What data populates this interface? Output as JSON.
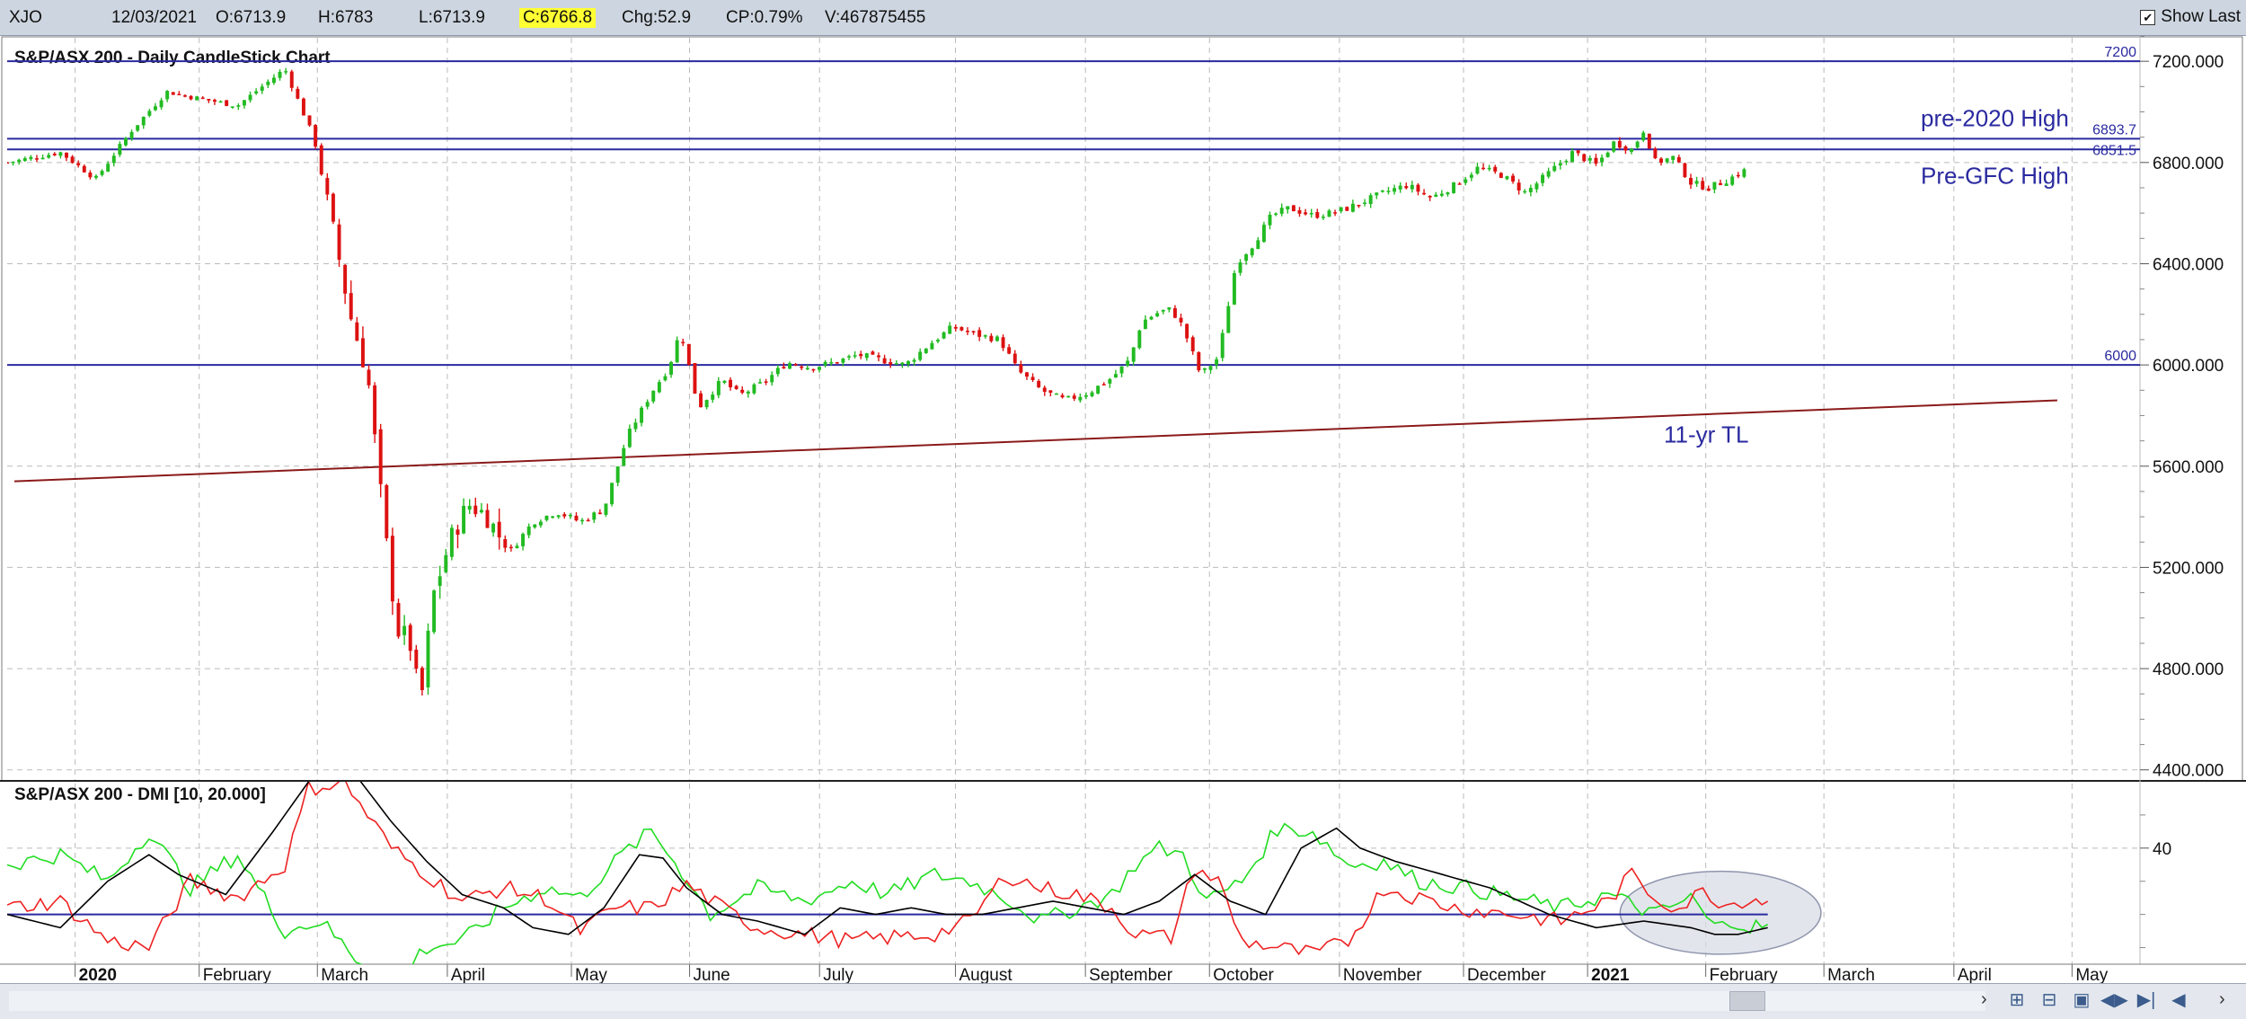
{
  "header": {
    "symbol": "XJO",
    "date": "12/03/2021",
    "open": "O:6713.9",
    "high": "H:6783",
    "low": "L:6713.9",
    "close": "C:6766.8",
    "change": "Chg:52.9",
    "change_pct": "CP:0.79%",
    "volume": "V:467875455",
    "show_last_label": "Show Last",
    "show_last_checked": true
  },
  "colors": {
    "up": "#22bb22",
    "down": "#dd1111",
    "hline": "#2a2aa0",
    "trendline": "#8b1a1a",
    "plus_di": "#22dd22",
    "minus_di": "#ee2222",
    "adx": "#000000",
    "annotation_text": "#2a2aa0",
    "highlight": "#ffff33"
  },
  "chart_data": [
    {
      "type": "candlestick",
      "title": "S&P/ASX 200 - Daily CandleStick Chart",
      "ylim": [
        4360,
        7300
      ],
      "y_ticks": [
        "7200.000",
        "6800.000",
        "6400.000",
        "6000.000",
        "5600.000",
        "5200.000",
        "4800.000",
        "4400.000"
      ],
      "y_tick_values": [
        7200,
        6800,
        6400,
        6000,
        5600,
        5200,
        4800,
        4400
      ],
      "x_month_labels": [
        "2020",
        "February",
        "March",
        "April",
        "May",
        "June",
        "July",
        "August",
        "September",
        "October",
        "November",
        "December",
        "2021",
        "February",
        "March",
        "April",
        "May"
      ],
      "x_month_starts": [
        2.5,
        23.5,
        43.5,
        65.5,
        86.5,
        106.5,
        128.5,
        151.5,
        173.5,
        194.5,
        216.5,
        237.5,
        258.5,
        278.5,
        298.5,
        320.5,
        340.5
      ],
      "x_range": [
        -9,
        352
      ],
      "series_close_path": [
        [
          -9,
          6800
        ],
        [
          0,
          6840
        ],
        [
          6,
          6735
        ],
        [
          12,
          6925
        ],
        [
          18,
          7080
        ],
        [
          24,
          7050
        ],
        [
          30,
          7025
        ],
        [
          38,
          7170
        ],
        [
          43,
          6890
        ],
        [
          47,
          6440
        ],
        [
          49,
          6200
        ],
        [
          52,
          5960
        ],
        [
          55,
          5330
        ],
        [
          57,
          4950
        ],
        [
          59,
          4920
        ],
        [
          61,
          4660
        ],
        [
          63,
          5080
        ],
        [
          66,
          5310
        ],
        [
          69,
          5450
        ],
        [
          72,
          5410
        ],
        [
          76,
          5260
        ],
        [
          80,
          5380
        ],
        [
          84,
          5420
        ],
        [
          88,
          5380
        ],
        [
          92,
          5430
        ],
        [
          96,
          5720
        ],
        [
          100,
          5890
        ],
        [
          103,
          5990
        ],
        [
          105,
          6140
        ],
        [
          108,
          5830
        ],
        [
          112,
          5940
        ],
        [
          115,
          5880
        ],
        [
          119,
          5930
        ],
        [
          123,
          6010
        ],
        [
          127,
          5990
        ],
        [
          131,
          6010
        ],
        [
          135,
          6040
        ],
        [
          139,
          6020
        ],
        [
          143,
          6000
        ],
        [
          147,
          6080
        ],
        [
          151,
          6150
        ],
        [
          155,
          6120
        ],
        [
          159,
          6100
        ],
        [
          162,
          5980
        ],
        [
          166,
          5900
        ],
        [
          170,
          5860
        ],
        [
          174,
          5890
        ],
        [
          178,
          5950
        ],
        [
          181,
          6020
        ],
        [
          183,
          6170
        ],
        [
          186,
          6210
        ],
        [
          188,
          6220
        ],
        [
          190,
          6150
        ],
        [
          193,
          5960
        ],
        [
          196,
          6030
        ],
        [
          199,
          6400
        ],
        [
          202,
          6480
        ],
        [
          205,
          6590
        ],
        [
          208,
          6620
        ],
        [
          212,
          6590
        ],
        [
          215,
          6600
        ],
        [
          218,
          6620
        ],
        [
          221,
          6650
        ],
        [
          225,
          6690
        ],
        [
          228,
          6710
        ],
        [
          232,
          6660
        ],
        [
          236,
          6710
        ],
        [
          240,
          6780
        ],
        [
          244,
          6750
        ],
        [
          248,
          6680
        ],
        [
          252,
          6760
        ],
        [
          256,
          6840
        ],
        [
          260,
          6790
        ],
        [
          263,
          6880
        ],
        [
          266,
          6850
        ],
        [
          268,
          6930
        ],
        [
          270,
          6800
        ],
        [
          273,
          6820
        ],
        [
          276,
          6720
        ],
        [
          279,
          6700
        ],
        [
          282,
          6730
        ],
        [
          285,
          6767
        ]
      ],
      "candle_count": 294,
      "horizontal_lines": [
        {
          "value": 7200,
          "label": "7200"
        },
        {
          "value": 6893.7,
          "label": "6893.7"
        },
        {
          "value": 6851.5,
          "label": "6851.5"
        },
        {
          "value": 6000,
          "label": "6000"
        }
      ],
      "annotations": [
        {
          "text": "pre-2020 High"
        },
        {
          "text": "Pre-GFC High"
        },
        {
          "text": "11-yr TL"
        }
      ],
      "trendline": {
        "from": [
          -9,
          5540
        ],
        "to": [
          338,
          5860
        ]
      },
      "grid": true
    },
    {
      "type": "line",
      "title": "S&P/ASX 200 - DMI [10, 20.000]",
      "ylim": [
        5,
        60
      ],
      "y_ticks": [
        "40"
      ],
      "y_tick_values": [
        40
      ],
      "reference_line": 20,
      "series": [
        {
          "key": "plus_di",
          "points": [
            [
              -9,
              35
            ],
            [
              0,
              38
            ],
            [
              8,
              30
            ],
            [
              15,
              45
            ],
            [
              22,
              28
            ],
            [
              30,
              38
            ],
            [
              38,
              15
            ],
            [
              44,
              18
            ],
            [
              50,
              7
            ],
            [
              56,
              0
            ],
            [
              62,
              10
            ],
            [
              68,
              12
            ],
            [
              75,
              22
            ],
            [
              82,
              28
            ],
            [
              88,
              25
            ],
            [
              95,
              38
            ],
            [
              100,
              45
            ],
            [
              104,
              36
            ],
            [
              110,
              20
            ],
            [
              118,
              28
            ],
            [
              126,
              24
            ],
            [
              134,
              30
            ],
            [
              140,
              26
            ],
            [
              148,
              32
            ],
            [
              154,
              30
            ],
            [
              160,
              25
            ],
            [
              166,
              18
            ],
            [
              172,
              22
            ],
            [
              178,
              26
            ],
            [
              182,
              35
            ],
            [
              186,
              40
            ],
            [
              190,
              38
            ],
            [
              194,
              24
            ],
            [
              200,
              30
            ],
            [
              206,
              46
            ],
            [
              212,
              45
            ],
            [
              218,
              35
            ],
            [
              224,
              36
            ],
            [
              230,
              30
            ],
            [
              238,
              28
            ],
            [
              246,
              25
            ],
            [
              254,
              22
            ],
            [
              262,
              26
            ],
            [
              270,
              20
            ],
            [
              276,
              25
            ],
            [
              280,
              16
            ],
            [
              284,
              18
            ],
            [
              286,
              16
            ],
            [
              289,
              17
            ]
          ]
        },
        {
          "key": "minus_di",
          "points": [
            [
              -9,
              22
            ],
            [
              0,
              24
            ],
            [
              8,
              12
            ],
            [
              15,
              10
            ],
            [
              22,
              30
            ],
            [
              30,
              25
            ],
            [
              38,
              35
            ],
            [
              42,
              58
            ],
            [
              48,
              60
            ],
            [
              52,
              50
            ],
            [
              56,
              40
            ],
            [
              62,
              32
            ],
            [
              68,
              24
            ],
            [
              75,
              28
            ],
            [
              82,
              25
            ],
            [
              88,
              15
            ],
            [
              94,
              22
            ],
            [
              100,
              22
            ],
            [
              106,
              29
            ],
            [
              112,
              22
            ],
            [
              118,
              16
            ],
            [
              126,
              14
            ],
            [
              134,
              12
            ],
            [
              140,
              13
            ],
            [
              148,
              14
            ],
            [
              154,
              18
            ],
            [
              160,
              32
            ],
            [
              166,
              28
            ],
            [
              172,
              26
            ],
            [
              178,
              22
            ],
            [
              182,
              14
            ],
            [
              188,
              13
            ],
            [
              192,
              34
            ],
            [
              196,
              30
            ],
            [
              200,
              12
            ],
            [
              206,
              10
            ],
            [
              212,
              8
            ],
            [
              218,
              12
            ],
            [
              224,
              28
            ],
            [
              230,
              25
            ],
            [
              236,
              22
            ],
            [
              246,
              20
            ],
            [
              254,
              18
            ],
            [
              262,
              24
            ],
            [
              266,
              32
            ],
            [
              270,
              25
            ],
            [
              274,
              22
            ],
            [
              278,
              27
            ],
            [
              282,
              23
            ],
            [
              286,
              25
            ],
            [
              289,
              24
            ]
          ]
        },
        {
          "key": "adx",
          "points": [
            [
              -9,
              20
            ],
            [
              0,
              16
            ],
            [
              8,
              30
            ],
            [
              15,
              38
            ],
            [
              20,
              32
            ],
            [
              28,
              26
            ],
            [
              36,
              45
            ],
            [
              42,
              60
            ],
            [
              46,
              70
            ],
            [
              50,
              62
            ],
            [
              56,
              48
            ],
            [
              62,
              36
            ],
            [
              68,
              26
            ],
            [
              75,
              22
            ],
            [
              80,
              16
            ],
            [
              86,
              14
            ],
            [
              92,
              22
            ],
            [
              98,
              38
            ],
            [
              102,
              37
            ],
            [
              106,
              28
            ],
            [
              112,
              20
            ],
            [
              118,
              18
            ],
            [
              126,
              14
            ],
            [
              132,
              22
            ],
            [
              138,
              20
            ],
            [
              144,
              22
            ],
            [
              150,
              20
            ],
            [
              156,
              20
            ],
            [
              162,
              22
            ],
            [
              168,
              24
            ],
            [
              174,
              22
            ],
            [
              180,
              20
            ],
            [
              186,
              24
            ],
            [
              192,
              32
            ],
            [
              198,
              24
            ],
            [
              204,
              20
            ],
            [
              210,
              40
            ],
            [
              216,
              46
            ],
            [
              220,
              40
            ],
            [
              226,
              36
            ],
            [
              234,
              32
            ],
            [
              242,
              28
            ],
            [
              252,
              20
            ],
            [
              260,
              16
            ],
            [
              268,
              18
            ],
            [
              276,
              16
            ],
            [
              280,
              14
            ],
            [
              284,
              14
            ],
            [
              289,
              16
            ]
          ]
        }
      ],
      "highlight_ellipse": {
        "center": [
          281,
          20.5
        ],
        "rx": 17,
        "ry": 12.5
      }
    }
  ],
  "toolbar": {
    "scroll_right_arrow": "›",
    "right_arrow": "›"
  }
}
